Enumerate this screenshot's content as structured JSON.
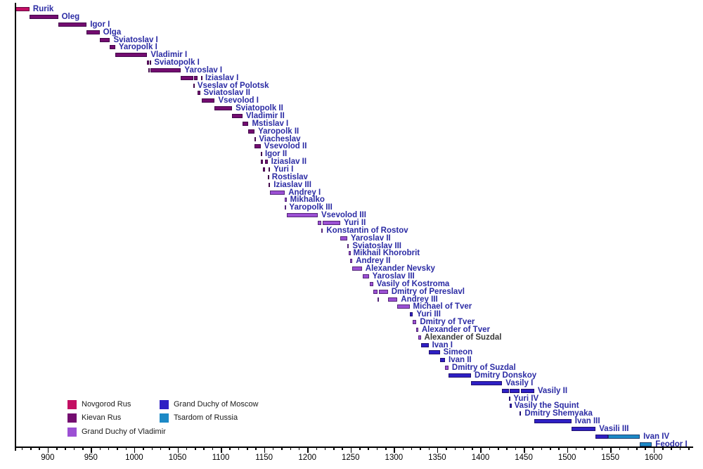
{
  "chart_data": {
    "type": "bar",
    "title": "",
    "description": "Timeline (Gantt-style) of rulers of Rus from Rurik to Feodor I, colored by polity",
    "x_axis": {
      "tick_labels": [
        "900",
        "950",
        "1000",
        "1050",
        "1100",
        "1150",
        "1200",
        "1250",
        "1300",
        "1350",
        "1400",
        "1450",
        "1500",
        "1550",
        "1600"
      ],
      "major_tick_years": [
        900,
        950,
        1000,
        1050,
        1100,
        1150,
        1200,
        1250,
        1300,
        1350,
        1400,
        1450,
        1500,
        1550,
        1600
      ],
      "minor_tick_step": 10,
      "minor_tick_range": [
        870,
        1640
      ],
      "axis_year_range": [
        862,
        1645
      ],
      "grid": false
    },
    "colors": {
      "novgorod": "#C30F63",
      "kievan": "#740D70",
      "vladimir": "#9C50D4",
      "moscow": "#2E20C4",
      "tsardom": "#1C89C6"
    },
    "label_color_default": "#2B2BA4",
    "legend": {
      "position": "bottom-left",
      "columns": [
        [
          {
            "label": "Novgorod Rus",
            "color_key": "novgorod"
          },
          {
            "label": "Kievan Rus",
            "color_key": "kievan"
          },
          {
            "label": "Grand Duchy of Vladimir",
            "color_key": "vladimir"
          }
        ],
        [
          {
            "label": "Grand Duchy of Moscow",
            "color_key": "moscow"
          },
          {
            "label": "Tsardom of Russia",
            "color_key": "tsardom"
          }
        ]
      ]
    },
    "rulers": [
      {
        "name": "Rurik",
        "house": "novgorod",
        "segments": [
          [
            862,
            879
          ]
        ]
      },
      {
        "name": "Oleg",
        "house": "kievan",
        "segments": [
          [
            879,
            912
          ]
        ]
      },
      {
        "name": "Igor I",
        "house": "kievan",
        "segments": [
          [
            912,
            945
          ]
        ]
      },
      {
        "name": "Olga",
        "house": "kievan",
        "segments": [
          [
            945,
            960
          ]
        ]
      },
      {
        "name": "Sviatoslav I",
        "house": "kievan",
        "segments": [
          [
            960,
            972
          ]
        ]
      },
      {
        "name": "Yaropolk I",
        "house": "kievan",
        "segments": [
          [
            972,
            978
          ]
        ]
      },
      {
        "name": "Vladimir I",
        "house": "kievan",
        "segments": [
          [
            978,
            1015
          ]
        ]
      },
      {
        "name": "Sviatopolk I",
        "house": "kievan",
        "segments": [
          [
            1015,
            1016
          ],
          [
            1018,
            1019
          ]
        ]
      },
      {
        "name": "Yaroslav I",
        "house": "kievan",
        "segments": [
          [
            1016,
            1018
          ],
          [
            1019,
            1054
          ]
        ]
      },
      {
        "name": "Iziaslav I",
        "house": "kievan",
        "segments": [
          [
            1054,
            1068
          ],
          [
            1069,
            1073
          ],
          [
            1077,
            1078
          ]
        ]
      },
      {
        "name": "Vseslav of Polotsk",
        "house": "kievan",
        "segments": [
          [
            1068,
            1069
          ]
        ]
      },
      {
        "name": "Sviatoslav II",
        "house": "kievan",
        "segments": [
          [
            1073,
            1076
          ]
        ]
      },
      {
        "name": "Vsevolod I",
        "house": "kievan",
        "segments": [
          [
            1078,
            1093
          ]
        ]
      },
      {
        "name": "Sviatopolk II",
        "house": "kievan",
        "segments": [
          [
            1093,
            1113
          ]
        ]
      },
      {
        "name": "Vladimir II",
        "house": "kievan",
        "segments": [
          [
            1113,
            1125
          ]
        ]
      },
      {
        "name": "Mstislav I",
        "house": "kievan",
        "segments": [
          [
            1125,
            1132
          ]
        ]
      },
      {
        "name": "Yaropolk II",
        "house": "kievan",
        "segments": [
          [
            1132,
            1139
          ]
        ]
      },
      {
        "name": "Viacheslav",
        "house": "kievan",
        "segments": [
          [
            1139,
            1140
          ]
        ]
      },
      {
        "name": "Vsevolod II",
        "house": "kievan",
        "segments": [
          [
            1139,
            1146
          ]
        ]
      },
      {
        "name": "Igor II",
        "house": "kievan",
        "segments": [
          [
            1146,
            1147
          ]
        ]
      },
      {
        "name": "Iziaslav II",
        "house": "kievan",
        "segments": [
          [
            1146,
            1149
          ],
          [
            1151,
            1154
          ]
        ]
      },
      {
        "name": "Yuri I",
        "house": "kievan",
        "segments": [
          [
            1149,
            1151
          ],
          [
            1155,
            1157
          ]
        ]
      },
      {
        "name": "Rostislav",
        "house": "kievan",
        "segments": [
          [
            1154,
            1155
          ]
        ]
      },
      {
        "name": "Iziaslav III",
        "house": "kievan",
        "segments": [
          [
            1155,
            1157
          ]
        ]
      },
      {
        "name": "Andrey I",
        "house": "vladimir",
        "segments": [
          [
            1157,
            1174
          ]
        ]
      },
      {
        "name": "Mikhalko",
        "house": "vladimir",
        "segments": [
          [
            1174,
            1176
          ]
        ]
      },
      {
        "name": "Yaropolk III",
        "house": "vladimir",
        "segments": [
          [
            1174,
            1175
          ]
        ]
      },
      {
        "name": "Vsevolod III",
        "house": "vladimir",
        "segments": [
          [
            1176,
            1212
          ]
        ]
      },
      {
        "name": "Yuri II",
        "house": "vladimir",
        "segments": [
          [
            1212,
            1216
          ],
          [
            1218,
            1238
          ]
        ]
      },
      {
        "name": "Konstantin of Rostov",
        "house": "vladimir",
        "segments": [
          [
            1216,
            1218
          ]
        ]
      },
      {
        "name": "Yaroslav II",
        "house": "vladimir",
        "segments": [
          [
            1238,
            1246
          ]
        ]
      },
      {
        "name": "Sviatoslav III",
        "house": "vladimir",
        "segments": [
          [
            1246,
            1248
          ]
        ]
      },
      {
        "name": "Mikhail Khorobrit",
        "house": "vladimir",
        "segments": [
          [
            1248,
            1249
          ]
        ]
      },
      {
        "name": "Andrey II",
        "house": "vladimir",
        "segments": [
          [
            1249,
            1252
          ]
        ]
      },
      {
        "name": "Alexander Nevsky",
        "house": "vladimir",
        "segments": [
          [
            1252,
            1263
          ]
        ]
      },
      {
        "name": "Yaroslav III",
        "house": "vladimir",
        "segments": [
          [
            1264,
            1271
          ]
        ]
      },
      {
        "name": "Vasily of Kostroma",
        "house": "vladimir",
        "segments": [
          [
            1272,
            1276
          ]
        ]
      },
      {
        "name": "Dmitry of Pereslavl",
        "house": "vladimir",
        "segments": [
          [
            1276,
            1281
          ],
          [
            1283,
            1293
          ]
        ]
      },
      {
        "name": "Andrey III",
        "house": "vladimir",
        "segments": [
          [
            1281,
            1283
          ],
          [
            1293,
            1304
          ]
        ]
      },
      {
        "name": "Michael of Tver",
        "house": "vladimir",
        "segments": [
          [
            1304,
            1318
          ]
        ]
      },
      {
        "name": "Yuri III",
        "house": "moscow",
        "segments": [
          [
            1318,
            1322
          ]
        ]
      },
      {
        "name": "Dmitry of Tver",
        "house": "vladimir",
        "segments": [
          [
            1322,
            1326
          ]
        ]
      },
      {
        "name": "Alexander of Tver",
        "house": "vladimir",
        "segments": [
          [
            1326,
            1328
          ]
        ]
      },
      {
        "name": "Alexander of Suzdal",
        "house": "vladimir",
        "segments": [
          [
            1328,
            1331
          ]
        ],
        "label_color": "#3A3A3A"
      },
      {
        "name": "Ivan I",
        "house": "moscow",
        "segments": [
          [
            1331,
            1340
          ]
        ]
      },
      {
        "name": "Simeon",
        "house": "moscow",
        "segments": [
          [
            1340,
            1353
          ]
        ]
      },
      {
        "name": "Ivan II",
        "house": "moscow",
        "segments": [
          [
            1353,
            1359
          ]
        ]
      },
      {
        "name": "Dmitry of Suzdal",
        "house": "vladimir",
        "segments": [
          [
            1359,
            1363
          ]
        ]
      },
      {
        "name": "Dmitry Donskoy",
        "house": "moscow",
        "segments": [
          [
            1363,
            1389
          ]
        ]
      },
      {
        "name": "Vasily I",
        "house": "moscow",
        "segments": [
          [
            1389,
            1425
          ]
        ]
      },
      {
        "name": "Vasily II",
        "house": "moscow",
        "segments": [
          [
            1425,
            1433
          ],
          [
            1434,
            1445
          ],
          [
            1447,
            1462
          ]
        ]
      },
      {
        "name": "Yuri IV",
        "house": "moscow",
        "segments": [
          [
            1433,
            1434
          ]
        ]
      },
      {
        "name": "Vasily the Squint",
        "house": "moscow",
        "segments": [
          [
            1434,
            1435
          ]
        ]
      },
      {
        "name": "Dmitry Shemyaka",
        "house": "moscow",
        "segments": [
          [
            1445,
            1447
          ]
        ]
      },
      {
        "name": "Ivan III",
        "house": "moscow",
        "segments": [
          [
            1462,
            1505
          ]
        ]
      },
      {
        "name": "Vasili III",
        "house": "moscow",
        "segments": [
          [
            1505,
            1533
          ]
        ]
      },
      {
        "name": "Ivan IV",
        "house": "moscow",
        "segments": [
          [
            1533,
            1547,
            "moscow"
          ],
          [
            1547,
            1584,
            "tsardom"
          ]
        ]
      },
      {
        "name": "Feodor I",
        "house": "tsardom",
        "segments": [
          [
            1584,
            1598
          ]
        ]
      }
    ]
  }
}
